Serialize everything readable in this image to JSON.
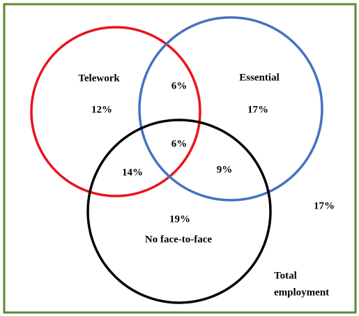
{
  "sets": [
    {
      "label": "Telework"
    },
    {
      "label": "Essential"
    },
    {
      "label": "No face-to-face"
    }
  ],
  "regions": {
    "telework_only": "12%",
    "telework_essential": "6%",
    "essential_only": "17%",
    "all_three": "6%",
    "telework_noface": "14%",
    "essential_noface": "9%",
    "noface_only": "19%",
    "outside": "17%"
  },
  "universe": {
    "label_lines": [
      "Total",
      "employment"
    ]
  }
}
